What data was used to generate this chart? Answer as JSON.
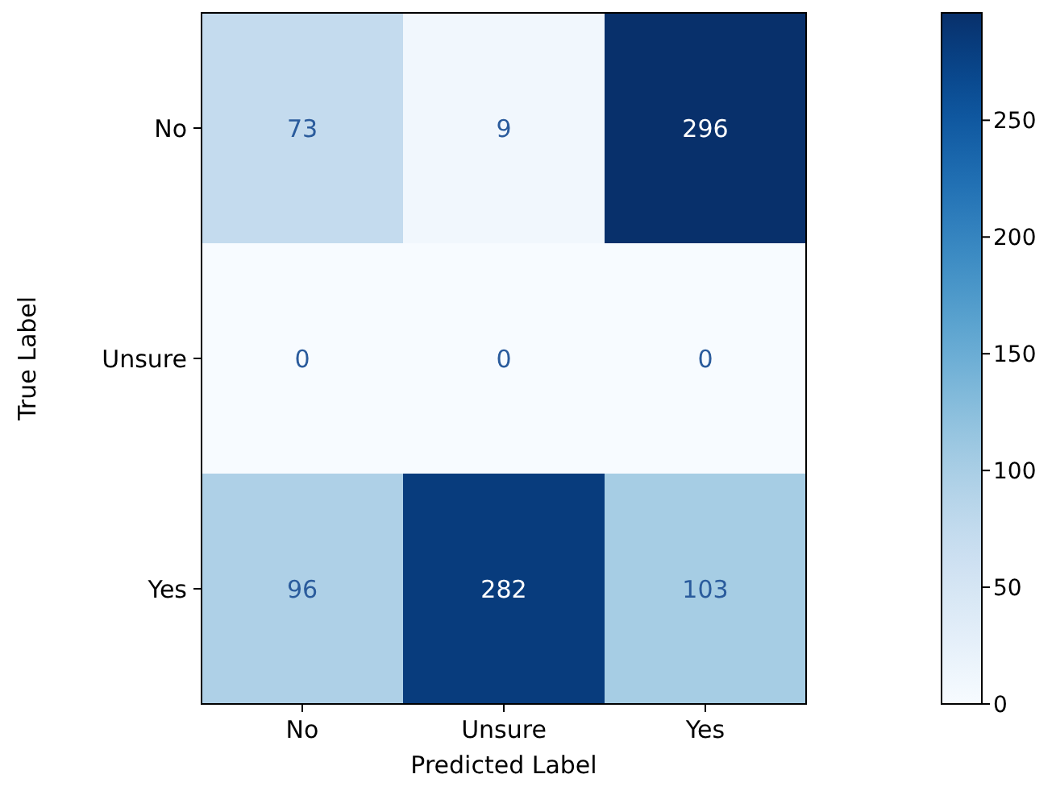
{
  "chart_data": {
    "type": "heatmap",
    "xlabel": "Predicted Label",
    "ylabel": "True Label",
    "categories": [
      "No",
      "Unsure",
      "Yes"
    ],
    "y_categories": [
      "No",
      "Unsure",
      "Yes"
    ],
    "cells": [
      [
        73,
        9,
        296
      ],
      [
        0,
        0,
        0
      ],
      [
        96,
        282,
        103
      ]
    ],
    "clim": [
      0,
      296
    ],
    "cticks": [
      0,
      50,
      100,
      150,
      200,
      250
    ],
    "data_labels": true
  }
}
